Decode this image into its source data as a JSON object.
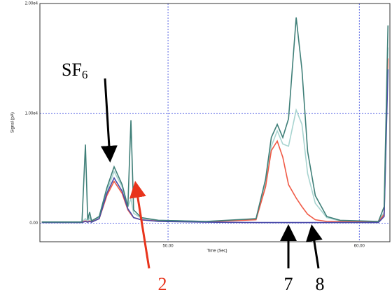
{
  "chart_data": {
    "type": "line",
    "x_label": "Time (Sec)",
    "y_label": "Signal (pA)",
    "xlim": [
      43.3,
      61.6
    ],
    "ylim": [
      -1700,
      20000
    ],
    "xticks": [
      {
        "value": 50,
        "label": "50.00"
      },
      {
        "value": 60,
        "label": "60.00"
      }
    ],
    "yticks": [
      {
        "value": 0,
        "label": "0.00"
      },
      {
        "value": 10000,
        "label": "1.00e4"
      },
      {
        "value": 20000,
        "label": "2.00e4"
      }
    ],
    "grid": true,
    "x": [
      43.4,
      45.5,
      45.68,
      45.8,
      45.9,
      46.0,
      46.4,
      46.8,
      47.18,
      47.6,
      47.9,
      48.06,
      48.2,
      48.6,
      49.5,
      52,
      54.6,
      55.1,
      55.4,
      55.71,
      56.0,
      56.3,
      56.7,
      57.0,
      57.3,
      57.7,
      58.3,
      59,
      61.0,
      61.3,
      61.5
    ],
    "series": [
      {
        "color": "#a8d4d0",
        "values": [
          100,
          100,
          400,
          150,
          500,
          150,
          500,
          2900,
          4700,
          3300,
          1500,
          2200,
          900,
          450,
          250,
          150,
          350,
          3500,
          7000,
          8400,
          7200,
          7000,
          10300,
          9000,
          4500,
          1800,
          500,
          200,
          130,
          1000,
          16000
        ]
      },
      {
        "color": "#f05a46",
        "values": [
          100,
          100,
          200,
          120,
          200,
          120,
          400,
          2500,
          3800,
          2700,
          1200,
          800,
          500,
          300,
          180,
          120,
          300,
          3300,
          6600,
          7470,
          6000,
          3500,
          2280,
          1500,
          800,
          300,
          150,
          120,
          100,
          800,
          15000
        ]
      },
      {
        "color": "#4a4aa8",
        "values": [
          50,
          50,
          150,
          80,
          150,
          80,
          400,
          2700,
          4110,
          2900,
          1300,
          900,
          500,
          300,
          150,
          80,
          50,
          50,
          50,
          50,
          50,
          50,
          50,
          50,
          50,
          50,
          50,
          50,
          50,
          600,
          14000
        ]
      },
      {
        "color": "#3f7f78",
        "values": [
          100,
          100,
          7150,
          300,
          1000,
          200,
          600,
          3200,
          5130,
          3500,
          1500,
          9370,
          1200,
          500,
          250,
          150,
          400,
          4000,
          7800,
          8990,
          7800,
          9500,
          18730,
          14000,
          6500,
          2500,
          600,
          250,
          150,
          1500,
          18000
        ]
      }
    ],
    "annotations": [
      {
        "text": "SF",
        "subscript": "6"
      },
      {
        "text": "2",
        "color": "#e8341c"
      },
      {
        "text": "7"
      },
      {
        "text": "8"
      }
    ]
  }
}
